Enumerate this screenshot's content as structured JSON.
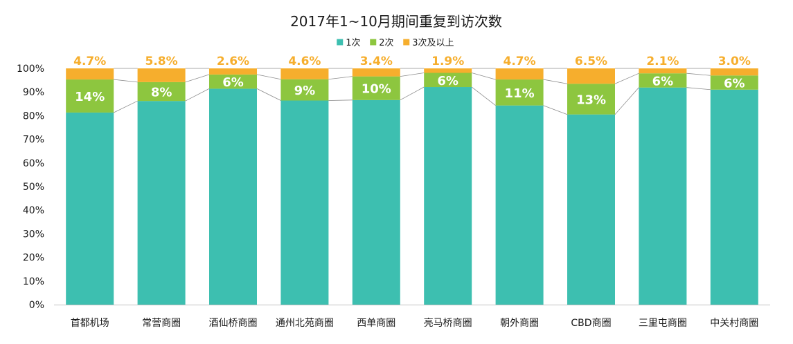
{
  "chart_data": {
    "type": "bar",
    "stacked": true,
    "percent_stacked": true,
    "title": "2017年1~10月期间重复到访次数",
    "xlabel": "",
    "ylabel": "",
    "ylim": [
      0,
      100
    ],
    "yticks": [
      "0%",
      "10%",
      "20%",
      "30%",
      "40%",
      "50%",
      "60%",
      "70%",
      "80%",
      "90%",
      "100%"
    ],
    "legend_position": "top-center",
    "grid": false,
    "series_lines": true,
    "categories": [
      "首都机场",
      "常营商圈",
      "酒仙桥商圈",
      "通州北苑商圈",
      "西单商圈",
      "亮马桥商圈",
      "朝外商圈",
      "CBD商圈",
      "三里屯商圈",
      "中关村商圈"
    ],
    "series": [
      {
        "name": "1次",
        "color": "#3dbfb0",
        "values": [
          81.3,
          86.2,
          91.4,
          86.4,
          86.6,
          92.1,
          84.3,
          80.5,
          91.9,
          91.0
        ],
        "labels": [
          "",
          "",
          "",
          "",
          "",
          "",
          "",
          "",
          "",
          ""
        ]
      },
      {
        "name": "2次",
        "color": "#8dc63f",
        "values": [
          14,
          8,
          6,
          9,
          10,
          6,
          11,
          13,
          6,
          6
        ],
        "labels": [
          "14%",
          "8%",
          "6%",
          "9%",
          "10%",
          "6%",
          "11%",
          "13%",
          "6%",
          "6%"
        ]
      },
      {
        "name": "3次及以上",
        "color": "#f6ae2d",
        "values": [
          4.7,
          5.8,
          2.6,
          4.6,
          3.4,
          1.9,
          4.7,
          6.5,
          2.1,
          3.0
        ],
        "labels": [
          "4.7%",
          "5.8%",
          "2.6%",
          "4.6%",
          "3.4%",
          "1.9%",
          "4.7%",
          "6.5%",
          "2.1%",
          "3.0%"
        ]
      }
    ]
  }
}
